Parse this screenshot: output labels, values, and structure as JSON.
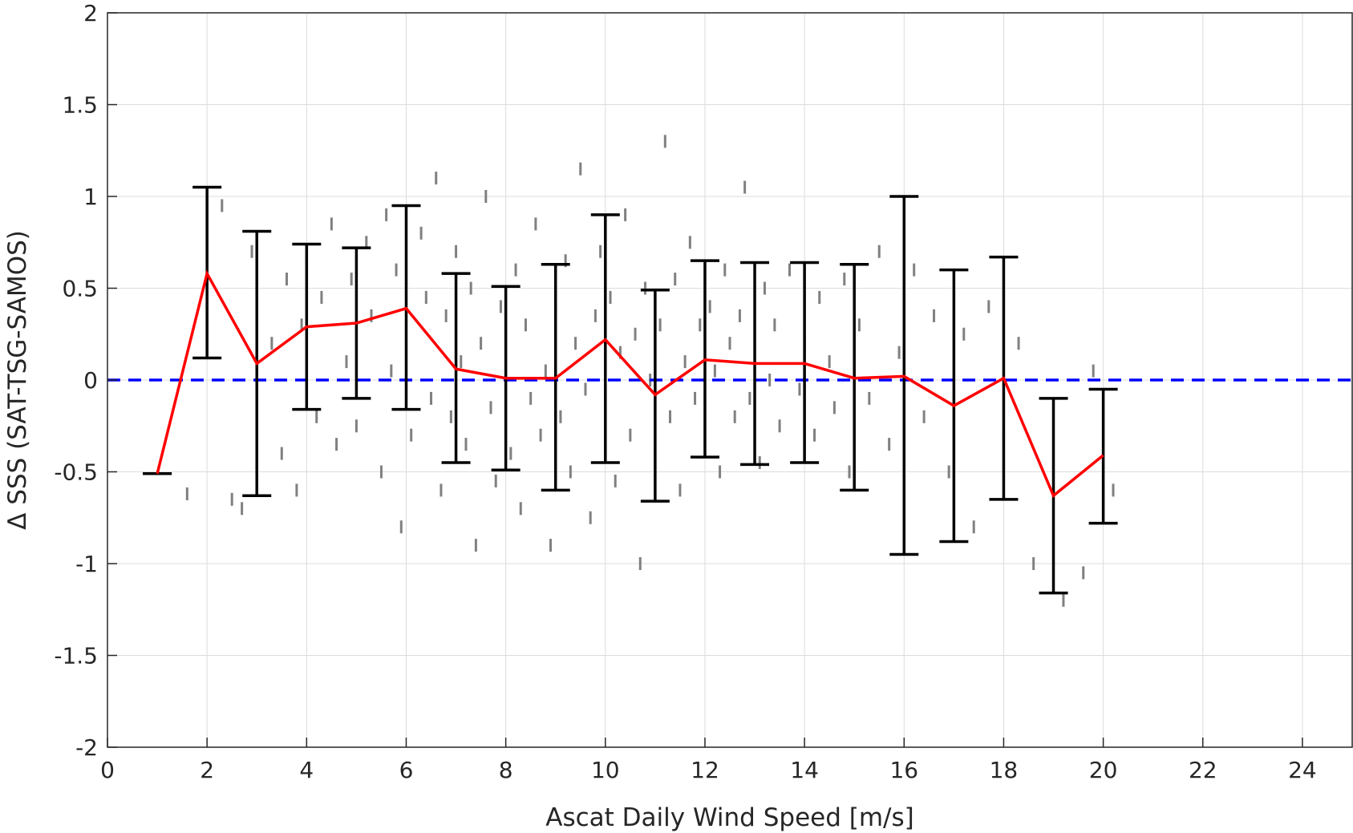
{
  "chart_data": {
    "type": "line",
    "title": "",
    "xlabel": "Ascat Daily Wind Speed [m/s]",
    "ylabel": "Δ SSS (SAT-TSG-SAMOS)",
    "xlim": [
      0,
      25
    ],
    "ylim": [
      -2,
      2
    ],
    "x_ticks": [
      0,
      2,
      4,
      6,
      8,
      10,
      12,
      14,
      16,
      18,
      20,
      22,
      24
    ],
    "y_ticks": [
      -2,
      -1.5,
      -1,
      -0.5,
      0,
      0.5,
      1,
      1.5,
      2
    ],
    "y_tick_labels": [
      "-2",
      "-1.5",
      "-1",
      "-0.5",
      "0",
      "0.5",
      "1",
      "1.5",
      "2"
    ],
    "grid": true,
    "legend": "none",
    "series": [
      {
        "kind": "line-errorbar",
        "color": "#ff0000",
        "errorbar_color": "#000000",
        "x": [
          1,
          2,
          3,
          4,
          5,
          6,
          7,
          8,
          9,
          10,
          11,
          12,
          13,
          14,
          15,
          16,
          17,
          18,
          19,
          20
        ],
        "y": [
          -0.51,
          0.58,
          0.09,
          0.29,
          0.31,
          0.39,
          0.06,
          0.01,
          0.01,
          0.22,
          -0.08,
          0.11,
          0.09,
          0.09,
          0.01,
          0.02,
          -0.14,
          0.01,
          -0.63,
          -0.41
        ],
        "lower": [
          -0.51,
          0.12,
          -0.63,
          -0.16,
          -0.1,
          -0.16,
          -0.45,
          -0.49,
          -0.6,
          -0.45,
          -0.66,
          -0.42,
          -0.46,
          -0.45,
          -0.6,
          -0.95,
          -0.88,
          -0.65,
          -1.16,
          -0.78
        ],
        "upper": [
          -0.51,
          1.05,
          0.81,
          0.74,
          0.72,
          0.95,
          0.58,
          0.51,
          0.63,
          0.9,
          0.49,
          0.65,
          0.64,
          0.64,
          0.63,
          1.0,
          0.6,
          0.67,
          -0.1,
          -0.05
        ]
      },
      {
        "kind": "reference-line",
        "y": 0,
        "style": "dashed",
        "color": "#0000ff"
      },
      {
        "kind": "scatter-background",
        "color": "#808080",
        "points": [
          [
            1.6,
            -0.62
          ],
          [
            2.3,
            0.95
          ],
          [
            2.5,
            -0.65
          ],
          [
            2.7,
            -0.7
          ],
          [
            2.9,
            0.7
          ],
          [
            3.0,
            -0.3
          ],
          [
            3.3,
            0.2
          ],
          [
            3.5,
            -0.4
          ],
          [
            3.6,
            0.55
          ],
          [
            3.8,
            -0.6
          ],
          [
            3.9,
            0.3
          ],
          [
            4.0,
            0.65
          ],
          [
            4.2,
            -0.2
          ],
          [
            4.3,
            0.45
          ],
          [
            4.5,
            0.85
          ],
          [
            4.6,
            -0.35
          ],
          [
            4.8,
            0.1
          ],
          [
            4.9,
            0.55
          ],
          [
            5.0,
            -0.25
          ],
          [
            5.2,
            0.75
          ],
          [
            5.3,
            0.35
          ],
          [
            5.5,
            -0.5
          ],
          [
            5.6,
            0.9
          ],
          [
            5.7,
            0.05
          ],
          [
            5.8,
            0.6
          ],
          [
            5.9,
            -0.8
          ],
          [
            6.0,
            0.25
          ],
          [
            6.1,
            -0.3
          ],
          [
            6.3,
            0.8
          ],
          [
            6.4,
            0.45
          ],
          [
            6.5,
            -0.1
          ],
          [
            6.6,
            1.1
          ],
          [
            6.7,
            -0.6
          ],
          [
            6.8,
            0.35
          ],
          [
            6.9,
            -0.2
          ],
          [
            7.0,
            0.7
          ],
          [
            7.1,
            0.1
          ],
          [
            7.2,
            -0.35
          ],
          [
            7.3,
            0.5
          ],
          [
            7.4,
            -0.9
          ],
          [
            7.5,
            0.2
          ],
          [
            7.6,
            1.0
          ],
          [
            7.7,
            -0.15
          ],
          [
            7.8,
            -0.55
          ],
          [
            7.9,
            0.4
          ],
          [
            8.0,
            0.15
          ],
          [
            8.1,
            -0.4
          ],
          [
            8.2,
            0.6
          ],
          [
            8.3,
            -0.7
          ],
          [
            8.4,
            0.3
          ],
          [
            8.5,
            -0.1
          ],
          [
            8.6,
            0.85
          ],
          [
            8.7,
            -0.3
          ],
          [
            8.8,
            0.05
          ],
          [
            8.9,
            -0.9
          ],
          [
            9.0,
            0.4
          ],
          [
            9.1,
            -0.2
          ],
          [
            9.2,
            0.65
          ],
          [
            9.3,
            -0.5
          ],
          [
            9.4,
            0.2
          ],
          [
            9.5,
            1.15
          ],
          [
            9.6,
            -0.05
          ],
          [
            9.7,
            -0.75
          ],
          [
            9.8,
            0.35
          ],
          [
            9.9,
            0.7
          ],
          [
            10.0,
            -0.1
          ],
          [
            10.1,
            0.45
          ],
          [
            10.2,
            -0.55
          ],
          [
            10.3,
            0.15
          ],
          [
            10.4,
            0.9
          ],
          [
            10.5,
            -0.3
          ],
          [
            10.6,
            0.25
          ],
          [
            10.7,
            -1.0
          ],
          [
            10.8,
            0.5
          ],
          [
            10.9,
            0.0
          ],
          [
            11.0,
            -0.4
          ],
          [
            11.1,
            0.3
          ],
          [
            11.2,
            1.3
          ],
          [
            11.3,
            -0.2
          ],
          [
            11.4,
            0.55
          ],
          [
            11.5,
            -0.6
          ],
          [
            11.6,
            0.1
          ],
          [
            11.7,
            0.75
          ],
          [
            11.8,
            -0.1
          ],
          [
            11.9,
            0.3
          ],
          [
            12.0,
            -0.3
          ],
          [
            12.1,
            0.4
          ],
          [
            12.2,
            0.05
          ],
          [
            12.3,
            -0.5
          ],
          [
            12.4,
            0.6
          ],
          [
            12.5,
            0.2
          ],
          [
            12.6,
            -0.2
          ],
          [
            12.7,
            0.35
          ],
          [
            12.8,
            1.05
          ],
          [
            12.9,
            -0.1
          ],
          [
            13.0,
            0.15
          ],
          [
            13.1,
            -0.45
          ],
          [
            13.2,
            0.5
          ],
          [
            13.3,
            0.0
          ],
          [
            13.4,
            0.3
          ],
          [
            13.5,
            -0.25
          ],
          [
            13.7,
            0.6
          ],
          [
            13.9,
            -0.05
          ],
          [
            14.0,
            0.2
          ],
          [
            14.2,
            -0.3
          ],
          [
            14.3,
            0.45
          ],
          [
            14.5,
            0.1
          ],
          [
            14.6,
            -0.15
          ],
          [
            14.8,
            0.55
          ],
          [
            14.9,
            -0.5
          ],
          [
            15.1,
            0.3
          ],
          [
            15.3,
            -0.1
          ],
          [
            15.5,
            0.7
          ],
          [
            15.7,
            -0.35
          ],
          [
            15.9,
            0.15
          ],
          [
            16.2,
            0.6
          ],
          [
            16.4,
            -0.2
          ],
          [
            16.6,
            0.35
          ],
          [
            16.9,
            -0.5
          ],
          [
            17.2,
            0.25
          ],
          [
            17.4,
            -0.8
          ],
          [
            17.7,
            0.4
          ],
          [
            18.0,
            -0.3
          ],
          [
            18.3,
            0.2
          ],
          [
            18.6,
            -1.0
          ],
          [
            19.2,
            -1.2
          ],
          [
            19.6,
            -1.05
          ],
          [
            19.8,
            0.05
          ],
          [
            20.2,
            -0.6
          ]
        ]
      }
    ]
  }
}
